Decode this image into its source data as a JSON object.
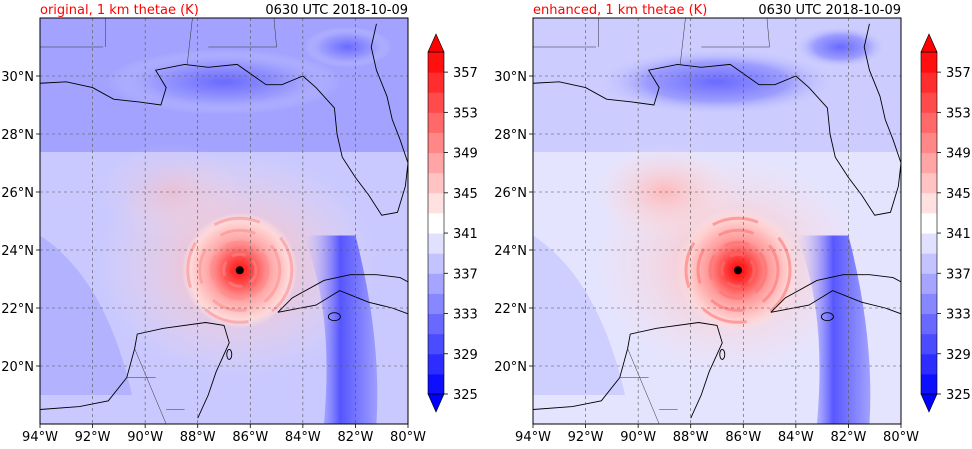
{
  "figure": {
    "panels": [
      {
        "title_left": "original, 1 km thetae (K)",
        "title_right": "0630 UTC 2018-10-09"
      },
      {
        "title_left": "enhanced, 1 km thetae (K)",
        "title_right": "0630 UTC 2018-10-09"
      }
    ],
    "colors": {
      "title_left": "#ff0000",
      "title_right": "#000000",
      "low": "#0000ff",
      "mid": "#ffffff",
      "high": "#ff0000",
      "storm_center": "#000000"
    }
  },
  "chart_data": [
    {
      "type": "heatmap",
      "title": "original, 1 km thetae (K)",
      "subtitle": "0630 UTC 2018-10-09",
      "x_ticks": [
        "94°W",
        "92°W",
        "90°W",
        "88°W",
        "86°W",
        "84°W",
        "82°W",
        "80°W"
      ],
      "y_ticks": [
        "20°N",
        "22°N",
        "24°N",
        "26°N",
        "28°N",
        "30°N"
      ],
      "xlim": [
        -94,
        -80
      ],
      "ylim": [
        18,
        32
      ],
      "grid": true,
      "colorbar": {
        "ticks": [
          "325",
          "329",
          "333",
          "337",
          "341",
          "345",
          "349",
          "353",
          "357"
        ],
        "range": [
          325,
          359
        ],
        "levels": [
          325,
          327,
          329,
          331,
          333,
          335,
          337,
          339,
          341,
          343,
          345,
          347,
          349,
          351,
          353,
          355,
          357,
          359
        ],
        "extend": "both",
        "placement": "right"
      },
      "storm_center": {
        "lon": -86.4,
        "lat": 23.3
      }
    },
    {
      "type": "heatmap",
      "title": "enhanced, 1 km thetae (K)",
      "subtitle": "0630 UTC 2018-10-09",
      "x_ticks": [
        "94°W",
        "92°W",
        "90°W",
        "88°W",
        "86°W",
        "84°W",
        "82°W",
        "80°W"
      ],
      "y_ticks": [
        "20°N",
        "22°N",
        "24°N",
        "26°N",
        "28°N",
        "30°N"
      ],
      "xlim": [
        -94,
        -80
      ],
      "ylim": [
        18,
        32
      ],
      "grid": true,
      "colorbar": {
        "ticks": [
          "325",
          "329",
          "333",
          "337",
          "341",
          "345",
          "349",
          "353",
          "357"
        ],
        "range": [
          325,
          359
        ],
        "levels": [
          325,
          327,
          329,
          331,
          333,
          335,
          337,
          339,
          341,
          343,
          345,
          347,
          349,
          351,
          353,
          355,
          357,
          359
        ],
        "extend": "both",
        "placement": "right"
      },
      "storm_center": {
        "lon": -86.2,
        "lat": 23.3
      }
    }
  ]
}
